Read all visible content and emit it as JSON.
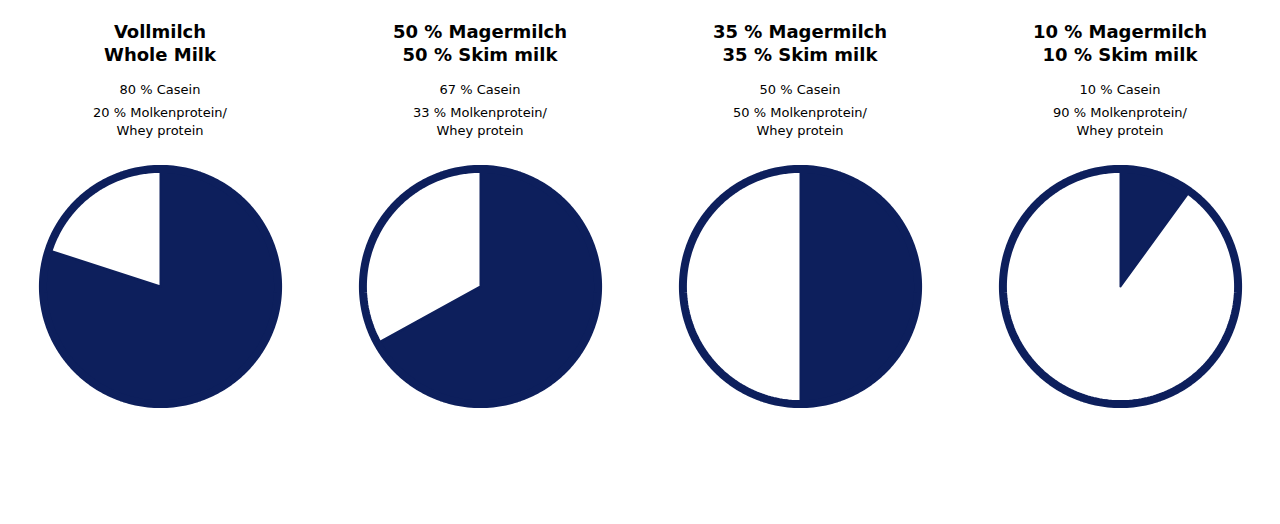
{
  "chart_data": [
    {
      "type": "pie",
      "title": "Vollmilch",
      "subtitle": "Whole Milk",
      "values": [
        80,
        20
      ],
      "value_labels": [
        "80 % Casein",
        "20 % Molkenprotein/\nWhey protein"
      ],
      "colors": [
        "#0d1f5c",
        "#ffffff"
      ],
      "data_labels": true
    },
    {
      "type": "pie",
      "title": "50 % Magermilch",
      "subtitle": "50 % Skim milk",
      "values": [
        67,
        33
      ],
      "value_labels": [
        "67 % Casein",
        "33 % Molkenprotein/\nWhey protein"
      ],
      "colors": [
        "#0d1f5c",
        "#ffffff"
      ],
      "data_labels": true
    },
    {
      "type": "pie",
      "title": "35 % Magermilch",
      "subtitle": "35 % Skim milk",
      "values": [
        50,
        50
      ],
      "value_labels": [
        "50 % Casein",
        "50 % Molkenprotein/\nWhey protein"
      ],
      "colors": [
        "#0d1f5c",
        "#ffffff"
      ],
      "data_labels": true
    },
    {
      "type": "pie",
      "title": "10 % Magermilch",
      "subtitle": "10 % Skim milk",
      "values": [
        10,
        90
      ],
      "value_labels": [
        "10 % Casein",
        "90 % Molkenprotein/\nWhey protein"
      ],
      "colors": [
        "#0d1f5c",
        "#ffffff"
      ],
      "data_labels": true
    }
  ]
}
